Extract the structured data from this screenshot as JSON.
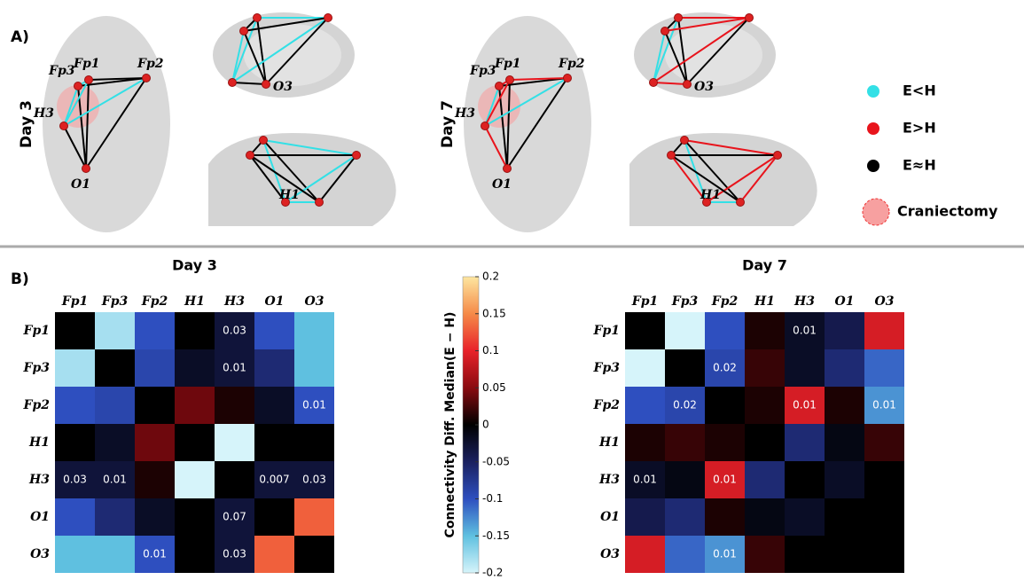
{
  "panel_a": {
    "label": "A)",
    "days": [
      "Day 3",
      "Day 7"
    ],
    "electrodes": [
      "Fp3",
      "Fp1",
      "Fp2",
      "H3",
      "O1",
      "O3",
      "H1"
    ],
    "legend": [
      {
        "label": "E<H",
        "color": "#33e0e6"
      },
      {
        "label": "E>H",
        "color": "#e8141c"
      },
      {
        "label": "E≈H",
        "color": "#000000"
      },
      {
        "label": "Craniectomy",
        "color": "#f7a0a0"
      }
    ]
  },
  "panel_b": {
    "label": "B)"
  },
  "colorbar": {
    "label": "Connectivity Diff. Median(E − H)",
    "lim": [
      -0.2,
      0.2
    ],
    "ticks": [
      0.2,
      0.15,
      0.1,
      0.05,
      0,
      -0.05,
      -0.1,
      -0.15,
      -0.2
    ]
  },
  "chart_data": [
    {
      "type": "heatmap",
      "title": "Day 3",
      "categories": [
        "Fp1",
        "Fp3",
        "Fp2",
        "H1",
        "H3",
        "O1",
        "O3"
      ],
      "values": [
        [
          0,
          -0.18,
          -0.1,
          0,
          -0.03,
          -0.1,
          -0.15
        ],
        [
          -0.18,
          0,
          -0.09,
          -0.02,
          -0.03,
          -0.06,
          -0.15
        ],
        [
          -0.1,
          -0.09,
          0,
          0.04,
          0.01,
          -0.02,
          -0.1
        ],
        [
          0,
          -0.02,
          0.04,
          0,
          -0.2,
          0,
          0
        ],
        [
          -0.03,
          -0.03,
          0.01,
          -0.2,
          0,
          -0.03,
          -0.03
        ],
        [
          -0.1,
          -0.06,
          -0.02,
          0,
          -0.03,
          0,
          0.13
        ],
        [
          -0.15,
          -0.15,
          -0.1,
          0,
          -0.03,
          0.13,
          0
        ]
      ],
      "cell_labels": [
        [
          null,
          null,
          null,
          null,
          "0.03",
          null,
          null
        ],
        [
          null,
          null,
          null,
          null,
          "0.01",
          null,
          null
        ],
        [
          null,
          null,
          null,
          null,
          null,
          null,
          "0.01"
        ],
        [
          null,
          null,
          null,
          null,
          null,
          null,
          null
        ],
        [
          "0.03",
          "0.01",
          null,
          null,
          null,
          "0.007",
          "0.03"
        ],
        [
          null,
          null,
          null,
          null,
          "0.07",
          null,
          null
        ],
        [
          null,
          null,
          "0.01",
          null,
          "0.03",
          null,
          null
        ]
      ]
    },
    {
      "type": "heatmap",
      "title": "Day 7",
      "categories": [
        "Fp1",
        "Fp3",
        "Fp2",
        "H1",
        "H3",
        "O1",
        "O3"
      ],
      "values": [
        [
          0,
          -0.2,
          -0.1,
          0.01,
          -0.02,
          -0.04,
          0.09
        ],
        [
          -0.2,
          0,
          -0.09,
          0.02,
          -0.02,
          -0.06,
          -0.11
        ],
        [
          -0.1,
          -0.09,
          0,
          0.01,
          0.09,
          0.01,
          -0.13
        ],
        [
          0.01,
          0.02,
          0.01,
          0,
          -0.06,
          -0.01,
          0.02
        ],
        [
          -0.02,
          -0.01,
          0.09,
          -0.06,
          0,
          -0.02,
          0
        ],
        [
          -0.04,
          -0.06,
          0.01,
          -0.01,
          -0.02,
          0,
          0
        ],
        [
          0.09,
          -0.11,
          -0.13,
          0.02,
          0,
          0,
          0
        ]
      ],
      "cell_labels": [
        [
          null,
          null,
          null,
          null,
          "0.01",
          null,
          null
        ],
        [
          null,
          null,
          "0.02",
          null,
          null,
          null,
          null
        ],
        [
          null,
          "0.02",
          null,
          null,
          "0.01",
          null,
          "0.01"
        ],
        [
          null,
          null,
          null,
          null,
          null,
          null,
          null
        ],
        [
          "0.01",
          null,
          "0.01",
          null,
          null,
          null,
          null
        ],
        [
          null,
          null,
          null,
          null,
          null,
          null,
          null
        ],
        [
          null,
          null,
          "0.01",
          null,
          null,
          null,
          null
        ]
      ]
    }
  ]
}
